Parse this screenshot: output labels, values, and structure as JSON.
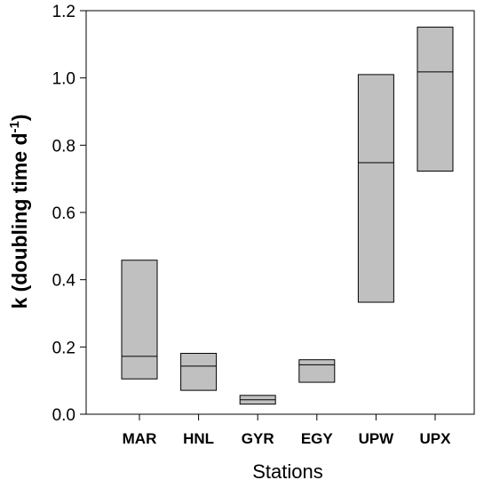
{
  "chart_data": {
    "type": "box",
    "xlabel": "Stations",
    "ylabel": {
      "main": "k (doubling time d",
      "sup": "-1",
      "end": ")"
    },
    "ylim": [
      0,
      1.2
    ],
    "yticks": [
      "0.0",
      "0.2",
      "0.4",
      "0.6",
      "0.8",
      "1.0",
      "1.2"
    ],
    "categories": [
      "MAR",
      "HNL",
      "GYR",
      "EGY",
      "UPW",
      "UPX"
    ],
    "boxes": [
      {
        "low": 0.105,
        "median": 0.172,
        "high": 0.458
      },
      {
        "low": 0.071,
        "median": 0.143,
        "high": 0.181
      },
      {
        "low": 0.03,
        "median": 0.043,
        "high": 0.056
      },
      {
        "low": 0.095,
        "median": 0.147,
        "high": 0.162
      },
      {
        "low": 0.333,
        "median": 0.748,
        "high": 1.01
      },
      {
        "low": 0.723,
        "median": 1.018,
        "high": 1.151
      }
    ],
    "box_fill": "#c0c0c0",
    "grid": false
  }
}
